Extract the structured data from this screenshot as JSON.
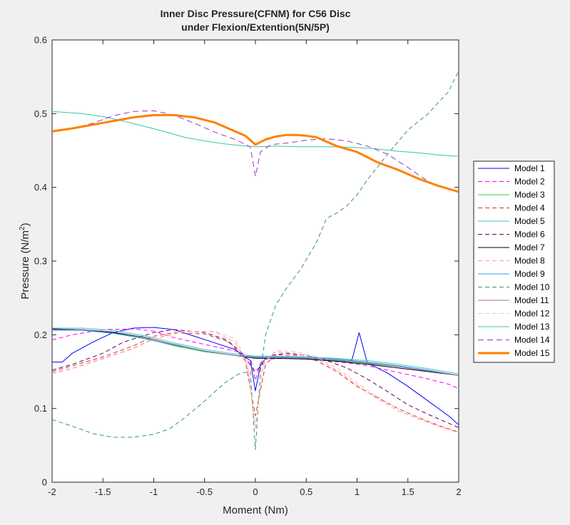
{
  "chart_data": {
    "type": "line",
    "title": [
      "Inner Disc Pressure(CFNM) for C56 Disc",
      "under Flexion/Extention(5N/5P)"
    ],
    "xlabel": "Moment (Nm)",
    "ylabel": "Pressure (N/m",
    "ylabel_sup": "2",
    "ylabel_close": ")",
    "xlim": [
      -2,
      2
    ],
    "ylim": [
      0,
      0.6
    ],
    "xticks": [
      -2,
      -1.5,
      -1,
      -0.5,
      0,
      0.5,
      1,
      1.5,
      2
    ],
    "xtick_labels": [
      "-2",
      "-1.5",
      "-1",
      "-0.5",
      "0",
      "0.5",
      "1",
      "1.5",
      "2"
    ],
    "yticks": [
      0,
      0.1,
      0.2,
      0.3,
      0.4,
      0.5,
      0.6
    ],
    "ytick_labels": [
      "0",
      "0.1",
      "0.2",
      "0.3",
      "0.4",
      "0.5",
      "0.6"
    ],
    "grid": false,
    "legend_position": "outside-right",
    "series": [
      {
        "name": "Model 1",
        "color": "#0000ff",
        "dash": "solid",
        "width": 1,
        "x": [
          -2,
          -1.9,
          -1.8,
          -1.6,
          -1.4,
          -1.2,
          -1.0,
          -0.8,
          -0.6,
          -0.4,
          -0.2,
          -0.05,
          0,
          0.05,
          0.1,
          0.3,
          0.5,
          0.7,
          0.9,
          0.95,
          1.02,
          1.1,
          1.3,
          1.5,
          1.7,
          1.9,
          2
        ],
        "y": [
          0.163,
          0.163,
          0.175,
          0.19,
          0.203,
          0.209,
          0.21,
          0.207,
          0.198,
          0.189,
          0.18,
          0.165,
          0.124,
          0.158,
          0.168,
          0.169,
          0.168,
          0.166,
          0.164,
          0.166,
          0.203,
          0.162,
          0.148,
          0.13,
          0.11,
          0.09,
          0.078
        ]
      },
      {
        "name": "Model 2",
        "color": "#ff00ff",
        "dash": "6 4",
        "width": 1,
        "x": [
          -2,
          -1.8,
          -1.5,
          -1.2,
          -1.0,
          -0.8,
          -0.5,
          -0.2,
          -0.05,
          0,
          0.05,
          0.1,
          0.3,
          0.5,
          0.7,
          0.9,
          1.1,
          1.3,
          1.5,
          1.7,
          1.9,
          2
        ],
        "y": [
          0.193,
          0.2,
          0.207,
          0.208,
          0.205,
          0.196,
          0.187,
          0.178,
          0.17,
          0.138,
          0.162,
          0.167,
          0.168,
          0.167,
          0.165,
          0.162,
          0.158,
          0.152,
          0.146,
          0.14,
          0.133,
          0.127
        ]
      },
      {
        "name": "Model 3",
        "color": "#33cc33",
        "dash": "solid",
        "width": 1,
        "x": [
          -2,
          -1.7,
          -1.4,
          -1.1,
          -0.8,
          -0.5,
          -0.2,
          0,
          0.2,
          0.5,
          0.8,
          1.1,
          1.4,
          1.7,
          2
        ],
        "y": [
          0.208,
          0.207,
          0.203,
          0.196,
          0.185,
          0.177,
          0.172,
          0.169,
          0.169,
          0.168,
          0.165,
          0.161,
          0.157,
          0.151,
          0.145
        ]
      },
      {
        "name": "Model 4",
        "color": "#cc3333",
        "dash": "6 4",
        "width": 1,
        "x": [
          -2,
          -1.8,
          -1.5,
          -1.2,
          -1.0,
          -0.8,
          -0.5,
          -0.25,
          -0.1,
          0,
          0.1,
          0.2,
          0.4,
          0.6,
          0.8,
          1.0,
          1.2,
          1.4,
          1.6,
          1.8,
          2
        ],
        "y": [
          0.15,
          0.158,
          0.17,
          0.185,
          0.198,
          0.203,
          0.201,
          0.19,
          0.165,
          0.09,
          0.16,
          0.173,
          0.172,
          0.165,
          0.15,
          0.13,
          0.115,
          0.1,
          0.088,
          0.077,
          0.068
        ]
      },
      {
        "name": "Model 5",
        "color": "#33cccc",
        "dash": "solid",
        "width": 1,
        "x": [
          -2,
          -1.7,
          -1.4,
          -1.1,
          -0.8,
          -0.5,
          -0.2,
          0,
          0.2,
          0.5,
          0.8,
          1.1,
          1.4,
          1.7,
          2
        ],
        "y": [
          0.209,
          0.209,
          0.206,
          0.199,
          0.189,
          0.18,
          0.174,
          0.171,
          0.171,
          0.17,
          0.168,
          0.165,
          0.16,
          0.154,
          0.147
        ]
      },
      {
        "name": "Model 6",
        "color": "#660066",
        "dash": "6 4",
        "width": 1,
        "x": [
          -2,
          -1.8,
          -1.5,
          -1.3,
          -1.0,
          -0.8,
          -0.5,
          -0.3,
          -0.15,
          0,
          0.15,
          0.3,
          0.5,
          0.7,
          0.9,
          1.1,
          1.3,
          1.5,
          1.7,
          1.9,
          2
        ],
        "y": [
          0.152,
          0.16,
          0.175,
          0.19,
          0.203,
          0.207,
          0.203,
          0.194,
          0.178,
          0.15,
          0.172,
          0.175,
          0.172,
          0.165,
          0.155,
          0.14,
          0.123,
          0.105,
          0.092,
          0.08,
          0.074
        ]
      },
      {
        "name": "Model 7",
        "color": "#000000",
        "dash": "solid",
        "width": 1,
        "x": [
          -2,
          -1.7,
          -1.4,
          -1.1,
          -0.8,
          -0.5,
          -0.2,
          0,
          0.2,
          0.5,
          0.8,
          1.1,
          1.4,
          1.7,
          2
        ],
        "y": [
          0.208,
          0.207,
          0.203,
          0.197,
          0.187,
          0.178,
          0.172,
          0.168,
          0.168,
          0.167,
          0.164,
          0.16,
          0.155,
          0.15,
          0.145
        ]
      },
      {
        "name": "Model 8",
        "color": "#ff9999",
        "dash": "6 4",
        "width": 1,
        "x": [
          -2,
          -1.8,
          -1.5,
          -1.2,
          -1.0,
          -0.7,
          -0.4,
          -0.2,
          -0.08,
          0,
          0.08,
          0.2,
          0.4,
          0.6,
          0.8,
          1.0,
          1.2,
          1.4,
          1.6,
          1.8,
          2
        ],
        "y": [
          0.148,
          0.155,
          0.168,
          0.182,
          0.195,
          0.205,
          0.204,
          0.19,
          0.16,
          0.075,
          0.16,
          0.177,
          0.175,
          0.168,
          0.152,
          0.132,
          0.113,
          0.097,
          0.086,
          0.076,
          0.067
        ]
      },
      {
        "name": "Model 9",
        "color": "#3399ff",
        "dash": "solid",
        "width": 1,
        "x": [
          -2,
          -1.7,
          -1.4,
          -1.1,
          -0.8,
          -0.5,
          -0.2,
          0,
          0.2,
          0.5,
          0.8,
          1.1,
          1.4,
          1.7,
          2
        ],
        "y": [
          0.206,
          0.206,
          0.202,
          0.195,
          0.186,
          0.178,
          0.172,
          0.17,
          0.17,
          0.169,
          0.167,
          0.163,
          0.158,
          0.152,
          0.145
        ]
      },
      {
        "name": "Model 10",
        "color": "#339966",
        "dash": "6 4",
        "width": 1,
        "x": [
          -2,
          -1.8,
          -1.6,
          -1.4,
          -1.2,
          -1.0,
          -0.85,
          -0.7,
          -0.5,
          -0.3,
          -0.15,
          -0.05,
          0,
          0.05,
          0.1,
          0.2,
          0.3,
          0.45,
          0.6,
          0.7,
          0.8,
          0.9,
          1.0,
          1.1,
          1.3,
          1.5,
          1.7,
          1.9,
          2
        ],
        "y": [
          0.085,
          0.076,
          0.066,
          0.061,
          0.061,
          0.065,
          0.072,
          0.087,
          0.11,
          0.135,
          0.148,
          0.15,
          0.044,
          0.15,
          0.2,
          0.24,
          0.262,
          0.29,
          0.325,
          0.358,
          0.365,
          0.375,
          0.39,
          0.41,
          0.445,
          0.478,
          0.5,
          0.53,
          0.558
        ]
      },
      {
        "name": "Model 11",
        "color": "#a66ea6",
        "dash": "solid",
        "width": 1,
        "x": [
          -2,
          -1.7,
          -1.4,
          -1.1,
          -0.8,
          -0.5,
          -0.2,
          0,
          0.2,
          0.5,
          0.8,
          1.1,
          1.4,
          1.7,
          2
        ],
        "y": [
          0.207,
          0.207,
          0.204,
          0.197,
          0.187,
          0.178,
          0.172,
          0.169,
          0.169,
          0.168,
          0.166,
          0.162,
          0.157,
          0.151,
          0.145
        ]
      },
      {
        "name": "Model 12",
        "color": "#ffbbbb",
        "dash": "6 4",
        "width": 1,
        "x": [
          -2,
          -1.8,
          -1.5,
          -1.2,
          -1.0,
          -0.7,
          -0.4,
          -0.2,
          -0.08,
          0,
          0.08,
          0.2,
          0.4,
          0.6,
          0.8,
          1.0,
          1.2,
          1.4,
          1.6,
          1.8,
          2
        ],
        "y": [
          0.147,
          0.154,
          0.167,
          0.181,
          0.194,
          0.204,
          0.205,
          0.195,
          0.165,
          0.072,
          0.162,
          0.179,
          0.177,
          0.17,
          0.155,
          0.135,
          0.116,
          0.1,
          0.088,
          0.077,
          0.068
        ]
      },
      {
        "name": "Model 13",
        "color": "#33cc99",
        "dash": "solid",
        "width": 1,
        "x": [
          -2,
          -1.7,
          -1.5,
          -1.3,
          -1.1,
          -0.9,
          -0.7,
          -0.5,
          -0.3,
          -0.1,
          0,
          0.2,
          0.4,
          0.6,
          0.8,
          1.0,
          1.2,
          1.4,
          1.6,
          1.8,
          2
        ],
        "y": [
          0.503,
          0.5,
          0.496,
          0.49,
          0.483,
          0.476,
          0.468,
          0.463,
          0.459,
          0.456,
          0.455,
          0.456,
          0.455,
          0.455,
          0.455,
          0.454,
          0.452,
          0.449,
          0.447,
          0.444,
          0.442
        ]
      },
      {
        "name": "Model 14",
        "color": "#9933cc",
        "dash": "8 5",
        "width": 1,
        "x": [
          -2,
          -1.8,
          -1.6,
          -1.4,
          -1.2,
          -1.0,
          -0.8,
          -0.6,
          -0.4,
          -0.2,
          -0.05,
          0,
          0.05,
          0.15,
          0.3,
          0.5,
          0.7,
          0.9,
          1.1,
          1.3,
          1.5,
          1.7,
          1.9,
          2
        ],
        "y": [
          0.475,
          0.48,
          0.487,
          0.497,
          0.503,
          0.504,
          0.498,
          0.487,
          0.475,
          0.465,
          0.455,
          0.415,
          0.448,
          0.458,
          0.46,
          0.464,
          0.466,
          0.463,
          0.456,
          0.445,
          0.427,
          0.408,
          0.397,
          0.394
        ]
      },
      {
        "name": "Model 15",
        "color": "#ff8000",
        "dash": "solid",
        "width": 3,
        "x": [
          -2,
          -1.8,
          -1.6,
          -1.4,
          -1.2,
          -1.0,
          -0.8,
          -0.6,
          -0.4,
          -0.2,
          -0.1,
          0,
          0.1,
          0.2,
          0.3,
          0.4,
          0.5,
          0.6,
          0.7,
          0.8,
          1.0,
          1.2,
          1.4,
          1.6,
          1.8,
          2
        ],
        "y": [
          0.476,
          0.48,
          0.485,
          0.49,
          0.495,
          0.498,
          0.498,
          0.495,
          0.488,
          0.476,
          0.47,
          0.458,
          0.465,
          0.469,
          0.471,
          0.471,
          0.47,
          0.468,
          0.462,
          0.456,
          0.448,
          0.434,
          0.424,
          0.412,
          0.402,
          0.394
        ]
      }
    ]
  }
}
